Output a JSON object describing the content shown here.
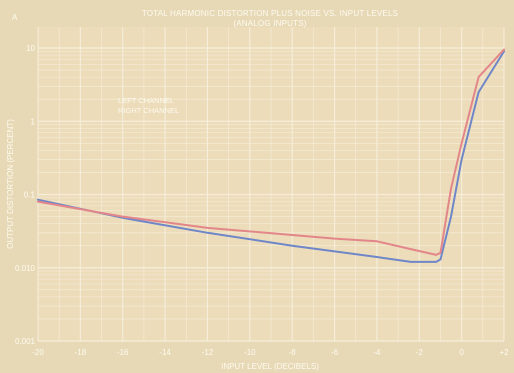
{
  "chart_data": {
    "type": "line",
    "panel_letter": "A",
    "title": "TOTAL HARMONIC DISTORTION PLUS NOISE VS. INPUT LEVELS",
    "subtitle": "(ANALOG INPUTS)",
    "xlabel": "INPUT LEVEL (DECIBELS)",
    "ylabel": "OUTPUT DISTORTION (PERCENT)",
    "x_ticks": [
      "-20",
      "-18",
      "-16",
      "-14",
      "-12",
      "-10",
      "-8",
      "-6",
      "-4",
      "-2",
      "0",
      "+2"
    ],
    "y_ticks": [
      "0.001",
      "0.010",
      "0.1",
      "1",
      "10"
    ],
    "xlim": [
      -20,
      2
    ],
    "ylim": [
      0.001,
      10
    ],
    "y_scale": "log",
    "grid": true,
    "legend_position": "upper-left",
    "series": [
      {
        "name": "LEFT CHANNEL",
        "color": "#6f87c8",
        "x": [
          -20,
          -16,
          -12,
          -8,
          -4,
          -2.4,
          -1.2,
          -1.0,
          -0.5,
          0,
          0.8,
          2
        ],
        "y": [
          0.085,
          0.048,
          0.03,
          0.02,
          0.014,
          0.012,
          0.012,
          0.013,
          0.05,
          0.3,
          2.5,
          9
        ]
      },
      {
        "name": "RIGHT CHANNEL",
        "color": "#e3868a",
        "x": [
          -20,
          -16,
          -12,
          -8,
          -6,
          -4,
          -2.4,
          -1.2,
          -1.0,
          -0.5,
          0,
          0.8,
          2
        ],
        "y": [
          0.08,
          0.05,
          0.035,
          0.028,
          0.025,
          0.023,
          0.018,
          0.015,
          0.016,
          0.12,
          0.5,
          4,
          9.5
        ]
      }
    ]
  }
}
